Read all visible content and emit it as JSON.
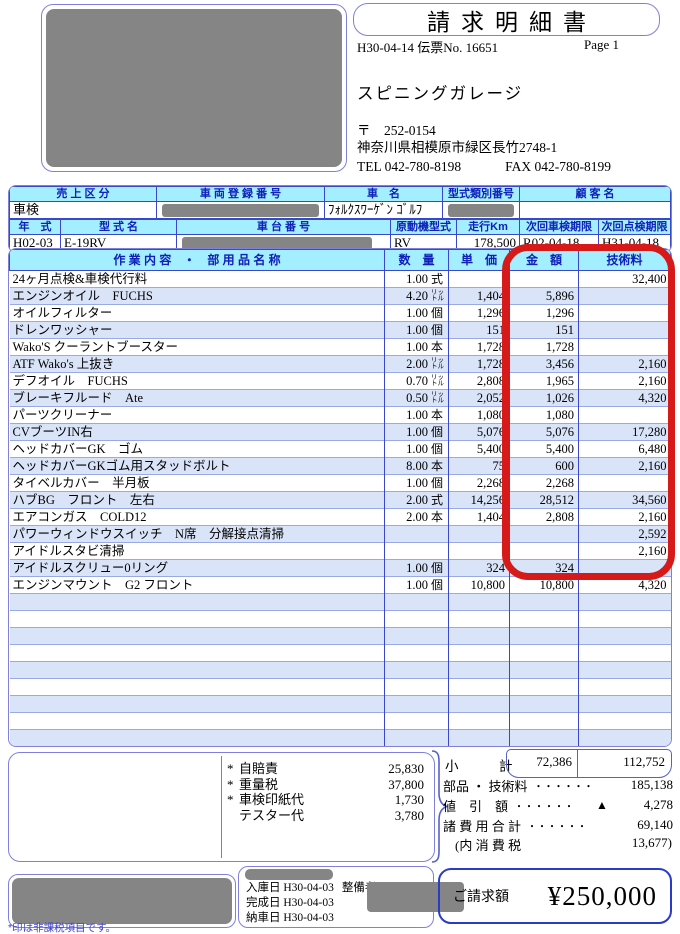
{
  "title": "請求明細書",
  "meta": {
    "date_line": "H30-04-14  伝票No. 16651",
    "page": "Page 1"
  },
  "shop": {
    "name": "スピニングガレージ",
    "postal": "〒　252-0154",
    "address": "神奈川県相模原市緑区長竹2748-1",
    "tel": "TEL 042-780-8198",
    "fax": "FAX 042-780-8199"
  },
  "vehicle_info": {
    "row1_headers": [
      "売 上 区 分",
      "車 両 登 録 番 号",
      "車　名",
      "型式類別番号",
      "顧 客 名"
    ],
    "row1_values": {
      "sales_type": "車検",
      "car_name": "ﾌｫﾙｸｽﾜｰｹﾞﾝ ｺﾞﾙﾌ"
    },
    "row2_headers": [
      "年　式",
      "型 式 名",
      "車 台 番 号",
      "原動機型式",
      "走行Km",
      "次回車検期限",
      "次回点検期限"
    ],
    "row2_values": {
      "year": "H02-03",
      "model_name": "E-19RV",
      "engine_model": "RV",
      "mileage": "178,500",
      "next_shaken": "R02-04-18",
      "next_tenken": "H31-04-18"
    }
  },
  "work_table": {
    "headers": [
      "作 業 内 容　・　部 用 品 名 称",
      "数　量",
      "単　価",
      "金　額",
      "技術料"
    ],
    "empty_rows": 9,
    "rows": [
      {
        "name": "24ヶ月点検&車検代行料",
        "qty": "1.00",
        "unit": "式",
        "price": "",
        "amount": "",
        "tech": "32,400"
      },
      {
        "name": "エンジンオイル　FUCHS",
        "qty": "4.20",
        "unit": "リットル",
        "price": "1,404",
        "amount": "5,896",
        "tech": ""
      },
      {
        "name": "オイルフィルター",
        "qty": "1.00",
        "unit": "個",
        "price": "1,296",
        "amount": "1,296",
        "tech": ""
      },
      {
        "name": "ドレンワッシャー",
        "qty": "1.00",
        "unit": "個",
        "price": "151",
        "amount": "151",
        "tech": ""
      },
      {
        "name": "Wako'S クーラントブースター",
        "qty": "1.00",
        "unit": "本",
        "price": "1,728",
        "amount": "1,728",
        "tech": ""
      },
      {
        "name": "ATF Wako's 上抜き",
        "qty": "2.00",
        "unit": "リットル",
        "price": "1,728",
        "amount": "3,456",
        "tech": "2,160"
      },
      {
        "name": "デフオイル　FUCHS",
        "qty": "0.70",
        "unit": "リットル",
        "price": "2,808",
        "amount": "1,965",
        "tech": "2,160"
      },
      {
        "name": "ブレーキフルード　Ate",
        "qty": "0.50",
        "unit": "リットル",
        "price": "2,052",
        "amount": "1,026",
        "tech": "4,320"
      },
      {
        "name": "パーツクリーナー",
        "qty": "1.00",
        "unit": "本",
        "price": "1,080",
        "amount": "1,080",
        "tech": ""
      },
      {
        "name": "CVブーツIN右",
        "qty": "1.00",
        "unit": "個",
        "price": "5,076",
        "amount": "5,076",
        "tech": "17,280"
      },
      {
        "name": "ヘッドカバーGK　ゴム",
        "qty": "1.00",
        "unit": "個",
        "price": "5,400",
        "amount": "5,400",
        "tech": "6,480"
      },
      {
        "name": "ヘッドカバーGKゴム用スタッドボルト",
        "qty": "8.00",
        "unit": "本",
        "price": "75",
        "amount": "600",
        "tech": "2,160"
      },
      {
        "name": "タイベルカバー　半月板",
        "qty": "1.00",
        "unit": "個",
        "price": "2,268",
        "amount": "2,268",
        "tech": ""
      },
      {
        "name": "ハブBG　フロント　左右",
        "qty": "2.00",
        "unit": "式",
        "price": "14,256",
        "amount": "28,512",
        "tech": "34,560"
      },
      {
        "name": "エアコンガス　COLD12",
        "qty": "2.00",
        "unit": "本",
        "price": "1,404",
        "amount": "2,808",
        "tech": "2,160"
      },
      {
        "name": "パワーウィンドウスイッチ　N席　分解接点清掃",
        "qty": "",
        "unit": "",
        "price": "",
        "amount": "",
        "tech": "2,592"
      },
      {
        "name": "アイドルスタビ清掃",
        "qty": "",
        "unit": "",
        "price": "",
        "amount": "",
        "tech": "2,160"
      },
      {
        "name": "アイドルスクリュー0リング",
        "qty": "1.00",
        "unit": "個",
        "price": "324",
        "amount": "324",
        "tech": ""
      },
      {
        "name": "エンジンマウント　G2 フロント",
        "qty": "1.00",
        "unit": "個",
        "price": "10,800",
        "amount": "10,800",
        "tech": "4,320"
      }
    ]
  },
  "fees": {
    "items": [
      {
        "mark": "*",
        "label": "自賠責",
        "value": "25,830"
      },
      {
        "mark": "*",
        "label": "重量税",
        "value": "37,800"
      },
      {
        "mark": "*",
        "label": "車検印紙代",
        "value": "1,730"
      },
      {
        "mark": "",
        "label": "テスター代",
        "value": "3,780"
      }
    ]
  },
  "summary": {
    "subtotal_label": "小　　　計",
    "subtotal_amount": "72,386",
    "subtotal_tech": "112,752",
    "lines": [
      {
        "label": "部品 ・ 技術料",
        "dots": "・・・・・・",
        "mark": "",
        "value": "185,138"
      },
      {
        "label": "値　引　額",
        "dots": "・・・・・・",
        "mark": "▲",
        "value": "4,278"
      },
      {
        "label": "諸 費 用 合 計",
        "dots": "・・・・・・",
        "mark": "",
        "value": "69,140"
      }
    ],
    "tax_line": {
      "label": "(内 消 費 税",
      "value": "13,677)"
    }
  },
  "dates_box": {
    "lines": [
      "入庫日 H30-04-03",
      "完成日 H30-04-03",
      "納車日 H30-04-03"
    ],
    "mechanic_label": "整備者"
  },
  "billing": {
    "label": "ご請求額",
    "amount": "¥250,000"
  },
  "footnote": "*印は非課税項目です。",
  "colors": {
    "box_border": "#8080dc",
    "table_line": "#3947c8",
    "table_line_light": "#9aa8e8",
    "header_bg": "#a3eeff",
    "header_text": "#1020b8",
    "row_alt_bg": "#d9e4f8",
    "annotation_red": "#d61a1a",
    "redaction_gray": "#858585",
    "footnote_blue": "#4343c8"
  }
}
